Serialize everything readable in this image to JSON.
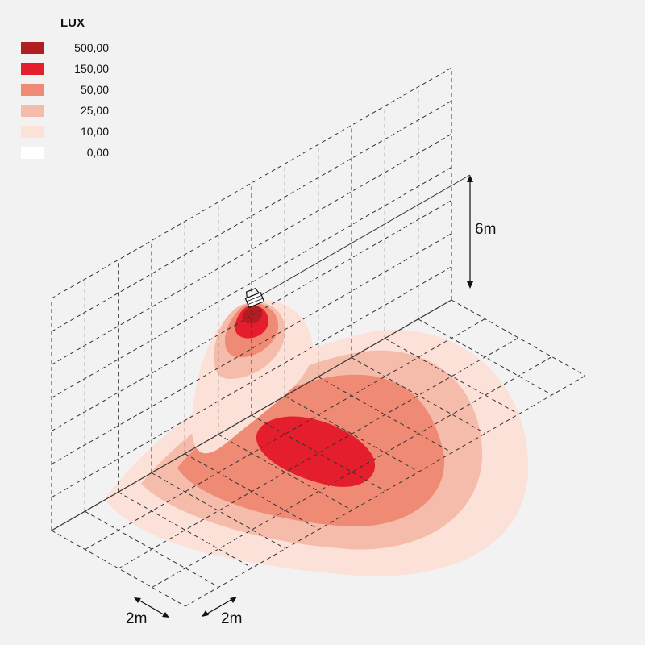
{
  "legend": {
    "title": "LUX",
    "items": [
      {
        "label": "500,00",
        "color": "#b01e23"
      },
      {
        "label": "150,00",
        "color": "#e41e2d"
      },
      {
        "label": "50,00",
        "color": "#ef8a75"
      },
      {
        "label": "25,00",
        "color": "#f6bcab"
      },
      {
        "label": "10,00",
        "color": "#fbe1d8"
      },
      {
        "label": "0,00",
        "color": "#ffffff"
      }
    ]
  },
  "dimensions": {
    "height_label": "6m",
    "grid_x_label": "2m",
    "grid_y_label": "2m"
  },
  "colors": {
    "background": "#f2f2f2",
    "grid_line": "#333333",
    "iso_500": "#b01e23",
    "iso_150": "#e41e2d",
    "iso_50": "#ef8a75",
    "iso_25": "#f6bcab",
    "iso_10": "#fbe1d8"
  },
  "icons": {
    "luminaire": "floodlight-icon"
  }
}
